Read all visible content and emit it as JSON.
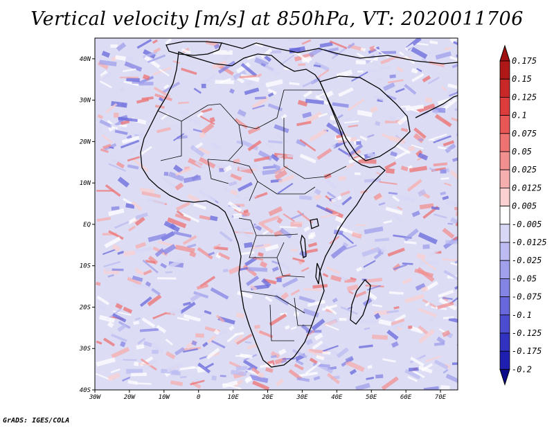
{
  "title": "Vertical velocity [m/s] at 850hPa, VT: 2020011706",
  "footer": "GrADS: IGES/COLA",
  "map": {
    "lat_ticks": [
      "40N",
      "30N",
      "20N",
      "10N",
      "EQ",
      "10S",
      "20S",
      "30S",
      "40S"
    ],
    "lon_ticks": [
      "30W",
      "20W",
      "10W",
      "0",
      "10E",
      "20E",
      "30E",
      "40E",
      "50E",
      "60E",
      "70E"
    ],
    "lon_range": [
      -30,
      75
    ],
    "lat_range": [
      -40,
      45
    ],
    "field": "vertical velocity (omega)",
    "level": "850hPa"
  },
  "colorbar": {
    "labels": [
      "0.175",
      "0.15",
      "0.125",
      "0.1",
      "0.075",
      "0.05",
      "0.025",
      "0.0125",
      "0.005",
      "-0.005",
      "-0.0125",
      "-0.025",
      "-0.05",
      "-0.075",
      "-0.1",
      "-0.125",
      "-0.175",
      "-0.2"
    ],
    "colors": [
      "#b01818",
      "#c82828",
      "#dc3c3c",
      "#e85656",
      "#ee7272",
      "#f29090",
      "#f6aeae",
      "#fad0d0",
      "#ffffff",
      "#d8d8f6",
      "#bcbcf2",
      "#a0a0ec",
      "#8484e4",
      "#6868dc",
      "#4c4cd0",
      "#3232c0",
      "#1e1eb0",
      "#10109c"
    ],
    "top_color": "#a01010",
    "bottom_color": "#0a0a8a"
  }
}
